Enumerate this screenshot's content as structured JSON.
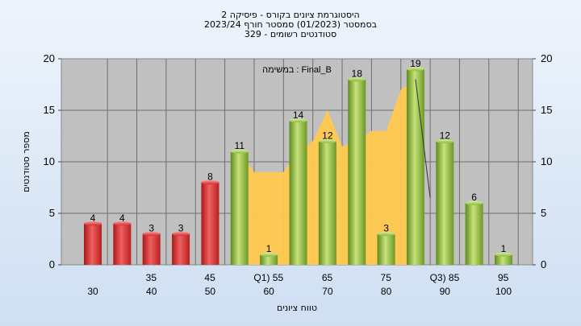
{
  "chart_data": {
    "type": "bar",
    "title": "היסטוגרמת ציונים בקורס - פיסיקה 2",
    "subtitle_lines": [
      "בסמסטר  (01/2023)  סמסטר חורף  2023/24",
      "329 - סטודנטים רשומים"
    ],
    "annotation": "במשימה : Final_B",
    "xlabel": "טווח ציונים",
    "ylabel": "מספר סטודנטים",
    "ylim": [
      0,
      20
    ],
    "yticks": [
      0,
      5,
      10,
      15,
      20
    ],
    "grid": true,
    "legend": "none",
    "categories": [
      "30",
      "35",
      "40",
      "45",
      "50",
      "55 (Q1",
      "60",
      "65",
      "70",
      "75",
      "80",
      "85 (Q3",
      "90",
      "95",
      "100"
    ],
    "values": [
      4,
      4,
      3,
      3,
      8,
      11,
      1,
      14,
      12,
      18,
      3,
      19,
      12,
      6,
      1
    ],
    "bar_colors": [
      "#d93030",
      "#d93030",
      "#d93030",
      "#d93030",
      "#d93030",
      "#8cbb3c",
      "#8cbb3c",
      "#8cbb3c",
      "#8cbb3c",
      "#8cbb3c",
      "#8cbb3c",
      "#8cbb3c",
      "#8cbb3c",
      "#8cbb3c",
      "#8cbb3c"
    ],
    "area_series": {
      "x": [
        "55 (Q1",
        "57.5",
        "60",
        "62.5",
        "65",
        "67.5",
        "70",
        "72.5",
        "75",
        "77.5",
        "80",
        "82.5",
        "85 (Q3"
      ],
      "values": [
        11,
        9,
        9,
        9,
        11,
        12,
        15,
        11.5,
        12,
        13,
        13,
        17,
        18
      ],
      "color": "#ffc94f"
    },
    "line_series": {
      "x": [
        "85 (Q3",
        "87.5"
      ],
      "values": [
        18,
        6.5
      ],
      "color": "#333333"
    }
  },
  "colors": {
    "plot_bg": "#c0c0c0",
    "grid": "#6e6e6e",
    "red_bar": "#d93030",
    "green_bar": "#8cbb3c",
    "area": "#ffc94f"
  }
}
